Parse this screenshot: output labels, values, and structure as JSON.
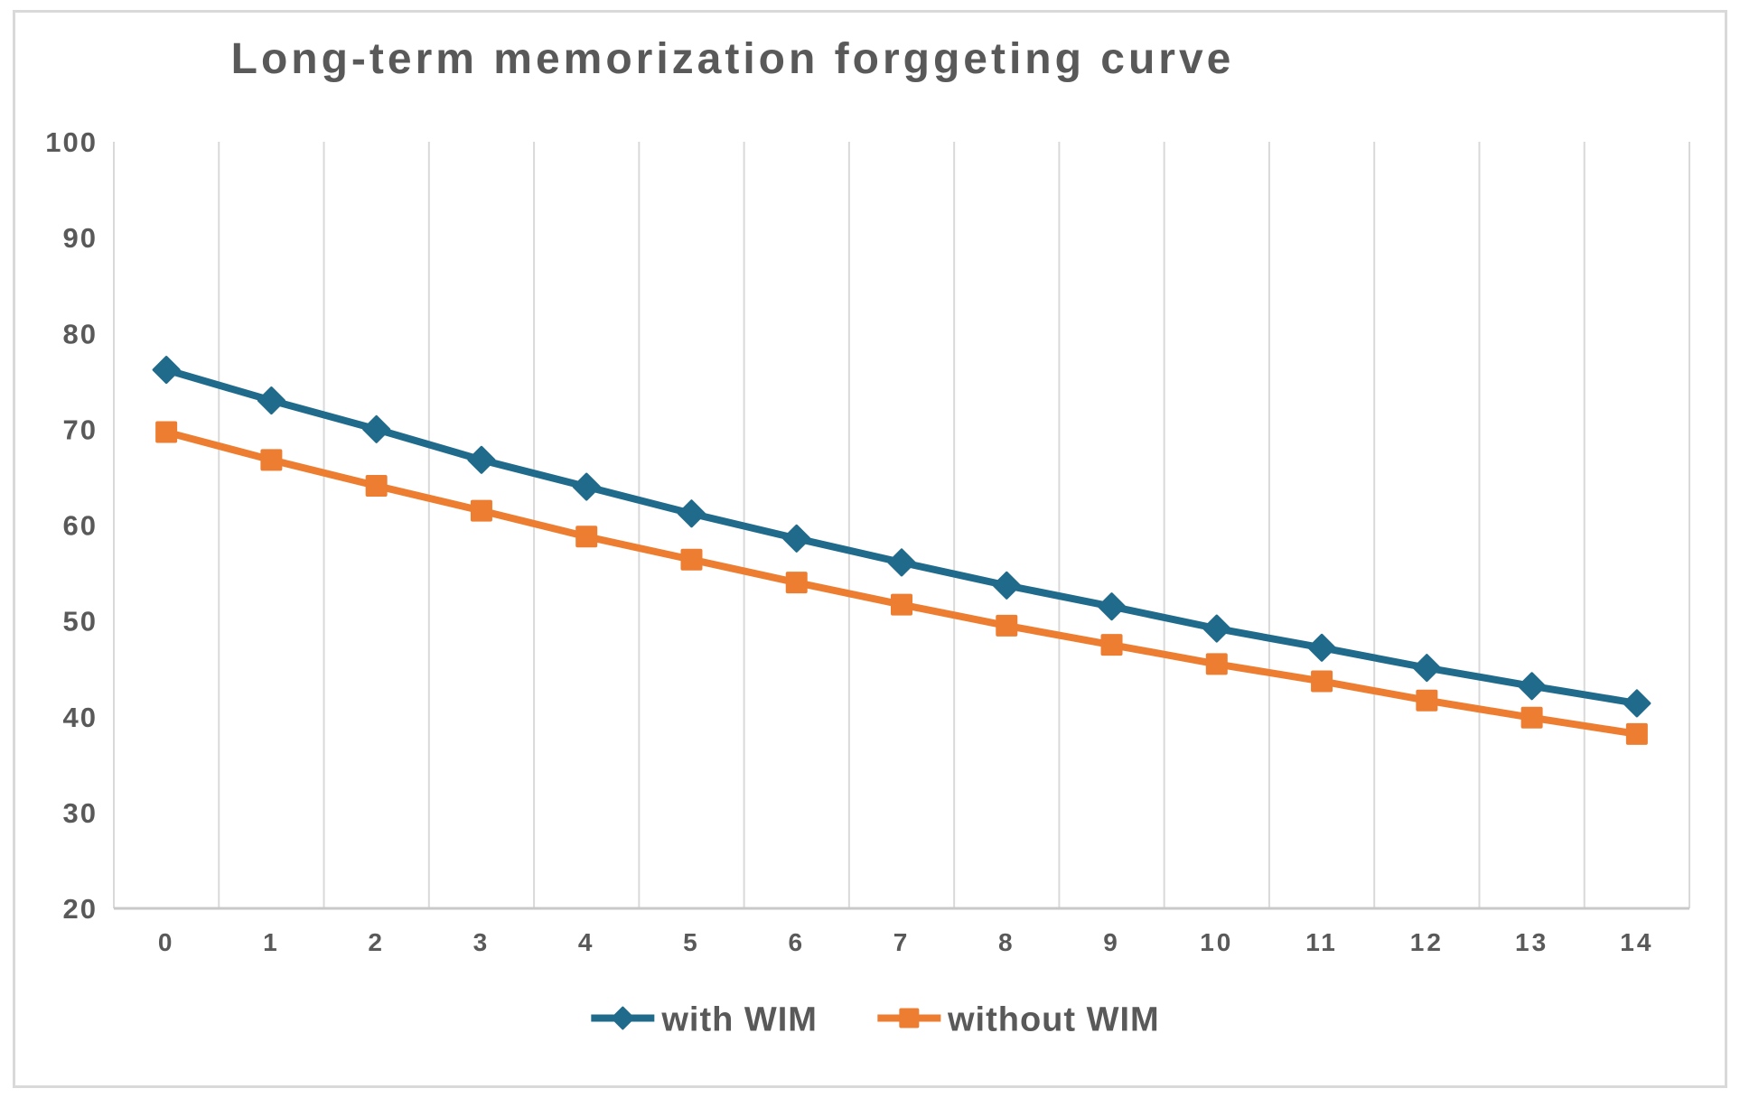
{
  "chart_data": {
    "type": "line",
    "title": "Long-term memorization forggeting curve",
    "categories": [
      "0",
      "1",
      "2",
      "3",
      "4",
      "5",
      "6",
      "7",
      "8",
      "9",
      "10",
      "11",
      "12",
      "13",
      "14"
    ],
    "series": [
      {
        "name": "with WIM",
        "color": "#206B8B",
        "marker": "diamond",
        "values": [
          76.2,
          73.0,
          70.0,
          66.8,
          64.0,
          61.2,
          58.6,
          56.1,
          53.7,
          51.5,
          49.2,
          47.2,
          45.1,
          43.2,
          41.4
        ]
      },
      {
        "name": "without WIM",
        "color": "#ED7D31",
        "marker": "square",
        "values": [
          69.7,
          66.8,
          64.1,
          61.5,
          58.8,
          56.4,
          54.0,
          51.7,
          49.5,
          47.5,
          45.5,
          43.7,
          41.7,
          39.9,
          38.2
        ]
      }
    ],
    "xlabel": "",
    "ylabel": "",
    "ylim": [
      20,
      100
    ],
    "y_ticks": [
      "20",
      "30",
      "40",
      "50",
      "60",
      "70",
      "80",
      "90",
      "100"
    ],
    "grid": "vertical-only",
    "legend_position": "bottom",
    "colors": {
      "title_text": "#595959",
      "axis_text": "#595959",
      "gridline": "#d9d9d9",
      "axis_line": "#c9c9c9",
      "chart_border": "#d9d9d9",
      "background": "#ffffff"
    }
  }
}
